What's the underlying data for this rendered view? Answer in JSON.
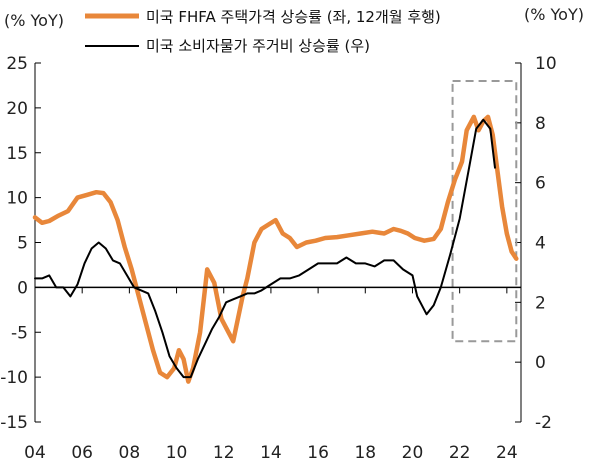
{
  "chart_data": {
    "type": "line",
    "left_axis_unit": "(% YoY)",
    "right_axis_unit": "(% YoY)",
    "x_ticks": [
      "04",
      "06",
      "08",
      "10",
      "12",
      "14",
      "16",
      "18",
      "20",
      "22",
      "24"
    ],
    "xlim": [
      2004.0,
      2024.6
    ],
    "ylim_left": [
      -15,
      25
    ],
    "yticks_left": [
      "25",
      "20",
      "15",
      "10",
      "5",
      "0",
      "-5",
      "-10",
      "-15"
    ],
    "ylim_right": [
      -2,
      10
    ],
    "yticks_right": [
      "10",
      "8",
      "6",
      "4",
      "2",
      "0",
      "-2"
    ],
    "series": [
      {
        "name": "미국 FHFA 주택가격 상승률 (좌, 12개월 후행)",
        "axis": "left",
        "color": "#E8873A",
        "x": [
          2004.0,
          2004.3,
          2004.6,
          2005.0,
          2005.4,
          2005.8,
          2006.2,
          2006.6,
          2006.9,
          2007.2,
          2007.5,
          2007.8,
          2008.1,
          2008.4,
          2008.7,
          2009.0,
          2009.3,
          2009.6,
          2009.9,
          2010.1,
          2010.3,
          2010.5,
          2010.7,
          2011.0,
          2011.3,
          2011.6,
          2011.9,
          2012.2,
          2012.4,
          2012.6,
          2012.8,
          2013.0,
          2013.3,
          2013.6,
          2013.9,
          2014.2,
          2014.5,
          2014.8,
          2015.1,
          2015.5,
          2015.9,
          2016.3,
          2016.8,
          2017.3,
          2017.8,
          2018.3,
          2018.8,
          2019.2,
          2019.5,
          2019.8,
          2020.1,
          2020.5,
          2020.9,
          2021.2,
          2021.5,
          2021.8,
          2022.1,
          2022.3,
          2022.6,
          2022.8,
          2023.0,
          2023.2,
          2023.4,
          2023.6,
          2023.8,
          2024.0,
          2024.2,
          2024.4
        ],
        "values": [
          7.8,
          7.2,
          7.4,
          8.0,
          8.5,
          10.0,
          10.3,
          10.6,
          10.5,
          9.5,
          7.5,
          4.5,
          2.0,
          -1.0,
          -4.0,
          -7.0,
          -9.5,
          -10.0,
          -9.0,
          -7.0,
          -8.0,
          -10.5,
          -9.0,
          -5.0,
          2.0,
          0.5,
          -3.5,
          -5.0,
          -6.0,
          -3.5,
          -1.0,
          1.0,
          5.0,
          6.5,
          7.0,
          7.5,
          6.0,
          5.5,
          4.5,
          5.0,
          5.2,
          5.5,
          5.6,
          5.8,
          6.0,
          6.2,
          6.0,
          6.5,
          6.3,
          6.0,
          5.5,
          5.2,
          5.4,
          6.5,
          9.5,
          12.0,
          14.0,
          17.5,
          19.0,
          17.5,
          18.5,
          19.0,
          17.0,
          13.0,
          9.0,
          6.0,
          4.0,
          3.2
        ]
      },
      {
        "name": "미국 소비자물가 주거비 상승률 (우)",
        "axis": "right",
        "color": "#000000",
        "x": [
          2004.0,
          2004.3,
          2004.6,
          2004.9,
          2005.2,
          2005.5,
          2005.8,
          2006.1,
          2006.4,
          2006.7,
          2007.0,
          2007.3,
          2007.6,
          2007.9,
          2008.2,
          2008.5,
          2008.8,
          2009.1,
          2009.4,
          2009.7,
          2010.0,
          2010.3,
          2010.6,
          2010.9,
          2011.2,
          2011.5,
          2011.8,
          2012.1,
          2012.4,
          2012.7,
          2013.0,
          2013.3,
          2013.6,
          2014.0,
          2014.4,
          2014.8,
          2015.2,
          2015.6,
          2016.0,
          2016.4,
          2016.8,
          2017.2,
          2017.6,
          2018.0,
          2018.4,
          2018.8,
          2019.2,
          2019.6,
          2020.0,
          2020.2,
          2020.4,
          2020.6,
          2020.9,
          2021.2,
          2021.6,
          2022.0,
          2022.4,
          2022.7,
          2023.0,
          2023.3,
          2023.5
        ],
        "values": [
          2.8,
          2.8,
          2.9,
          2.5,
          2.5,
          2.2,
          2.6,
          3.3,
          3.8,
          4.0,
          3.8,
          3.4,
          3.3,
          2.9,
          2.5,
          2.4,
          2.3,
          1.7,
          1.0,
          0.2,
          -0.2,
          -0.5,
          -0.5,
          0.1,
          0.6,
          1.1,
          1.5,
          2.0,
          2.1,
          2.2,
          2.3,
          2.3,
          2.4,
          2.6,
          2.8,
          2.8,
          2.9,
          3.1,
          3.3,
          3.3,
          3.3,
          3.5,
          3.3,
          3.3,
          3.2,
          3.4,
          3.4,
          3.1,
          2.9,
          2.2,
          1.9,
          1.6,
          1.9,
          2.5,
          3.6,
          4.8,
          6.5,
          7.8,
          8.1,
          7.8,
          6.5
        ]
      }
    ],
    "highlight_box": {
      "x0": 2021.7,
      "x1": 2024.4,
      "y0_left": -6,
      "y1_left": 23
    }
  }
}
